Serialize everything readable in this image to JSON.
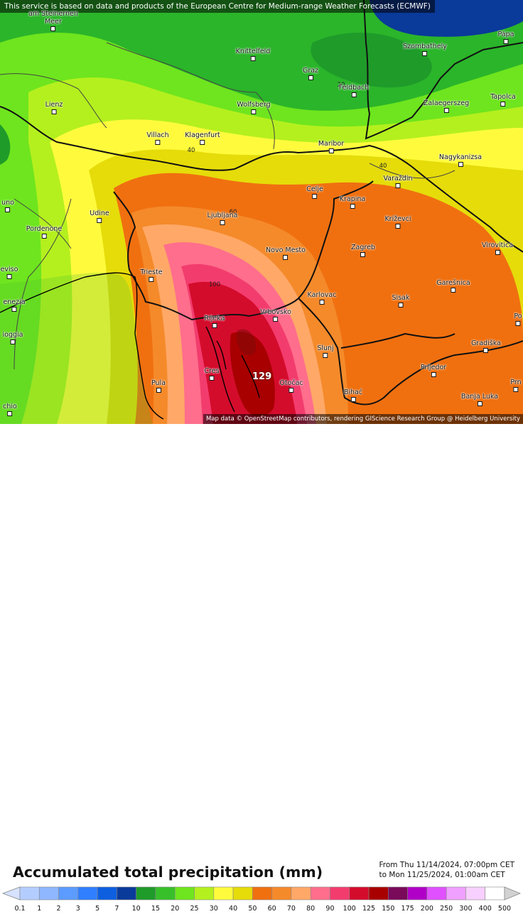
{
  "banner": "This service is based on data and products of the European Centre for Medium-range Weather Forecasts (ECMWF)",
  "attribution": "Map data © OpenStreetMap contributors, rendering GIScience Research Group @ Heidelberg University",
  "title": "Accumulated total precipitation (mm)",
  "period": {
    "from": "From Thu 11/14/2024, 07:00pm CET",
    "to": "to Mon 11/25/2024, 01:00am CET"
  },
  "max_label": "129",
  "contour_labels": [
    {
      "text": "20",
      "id": "c20"
    },
    {
      "text": "40",
      "id": "c40a"
    },
    {
      "text": "40",
      "id": "c40b"
    },
    {
      "text": "60",
      "id": "c60"
    },
    {
      "text": "100",
      "id": "c100"
    }
  ],
  "cities": [
    {
      "name": "am Steinernen\nMeer",
      "id": "am-steinernen-meer"
    },
    {
      "name": "Knittelfeld",
      "id": "knittelfeld"
    },
    {
      "name": "Szombathely",
      "id": "szombathely"
    },
    {
      "name": "Pápa",
      "id": "papa"
    },
    {
      "name": "Graz",
      "id": "graz"
    },
    {
      "name": "Feldbach",
      "id": "feldbach"
    },
    {
      "name": "Lienz",
      "id": "lienz"
    },
    {
      "name": "Wolfsberg",
      "id": "wolfsberg"
    },
    {
      "name": "Zalaegerszeg",
      "id": "zalaegerszeg"
    },
    {
      "name": "Tapolca",
      "id": "tapolca"
    },
    {
      "name": "Villach",
      "id": "villach"
    },
    {
      "name": "Klagenfurt",
      "id": "klagenfurt"
    },
    {
      "name": "Maribor",
      "id": "maribor"
    },
    {
      "name": "Nagykanizsa",
      "id": "nagykanizsa"
    },
    {
      "name": "Varaždin",
      "id": "varazdin"
    },
    {
      "name": "Celje",
      "id": "celje"
    },
    {
      "name": "Krapina",
      "id": "krapina"
    },
    {
      "name": "uno",
      "id": "uno"
    },
    {
      "name": "Udine",
      "id": "udine"
    },
    {
      "name": "Ljubljana",
      "id": "ljubljana"
    },
    {
      "name": "Križevci",
      "id": "krizevci"
    },
    {
      "name": "Pordenone",
      "id": "pordenone"
    },
    {
      "name": "Novo Mesto",
      "id": "novo-mesto"
    },
    {
      "name": "Zagreb",
      "id": "zagreb"
    },
    {
      "name": "Virovitica",
      "id": "virovitica"
    },
    {
      "name": "eviso",
      "id": "eviso"
    },
    {
      "name": "Trieste",
      "id": "trieste"
    },
    {
      "name": "Garešnica",
      "id": "gaijesnica"
    },
    {
      "name": "Karlovac",
      "id": "karlovac"
    },
    {
      "name": "Sisak",
      "id": "sisak"
    },
    {
      "name": "enezia",
      "id": "enezia"
    },
    {
      "name": "Vrbovsko",
      "id": "vrbovsko"
    },
    {
      "name": "Rijeka",
      "id": "rijeka"
    },
    {
      "name": "Po",
      "id": "po"
    },
    {
      "name": "ioggia",
      "id": "ioggia"
    },
    {
      "name": "Slunj",
      "id": "slunj"
    },
    {
      "name": "Gradiška",
      "id": "gradiska"
    },
    {
      "name": "Cres",
      "id": "cres"
    },
    {
      "name": "Prijedor",
      "id": "prijedor"
    },
    {
      "name": "Pula",
      "id": "pula"
    },
    {
      "name": "Otočac",
      "id": "otocac"
    },
    {
      "name": "Prn",
      "id": "prn"
    },
    {
      "name": "Bihać",
      "id": "bihac"
    },
    {
      "name": "Banja Luka",
      "id": "banja-luka"
    },
    {
      "name": "chio",
      "id": "chio"
    }
  ],
  "scale": {
    "ticks": [
      "0.1",
      "1",
      "2",
      "3",
      "5",
      "7",
      "10",
      "15",
      "20",
      "25",
      "30",
      "40",
      "50",
      "60",
      "70",
      "80",
      "90",
      "100",
      "125",
      "150",
      "175",
      "200",
      "250",
      "300",
      "400",
      "500"
    ],
    "colors": [
      "#d6e2ff",
      "#b4cdff",
      "#8fb7ff",
      "#5c9bff",
      "#2f7fff",
      "#0d5fe0",
      "#0a3a9a",
      "#1f9b2a",
      "#37c02a",
      "#6ee51e",
      "#b4f01e",
      "#fffb3c",
      "#e6dc0a",
      "#f07010",
      "#f58a2a",
      "#ffa868",
      "#ff6e8c",
      "#f33c6e",
      "#d40c2c",
      "#a80000",
      "#7a0a5a",
      "#b000c8",
      "#e050ff",
      "#f0a0ff",
      "#f8d0ff",
      "#ffffff",
      "#d2d2d2"
    ]
  }
}
